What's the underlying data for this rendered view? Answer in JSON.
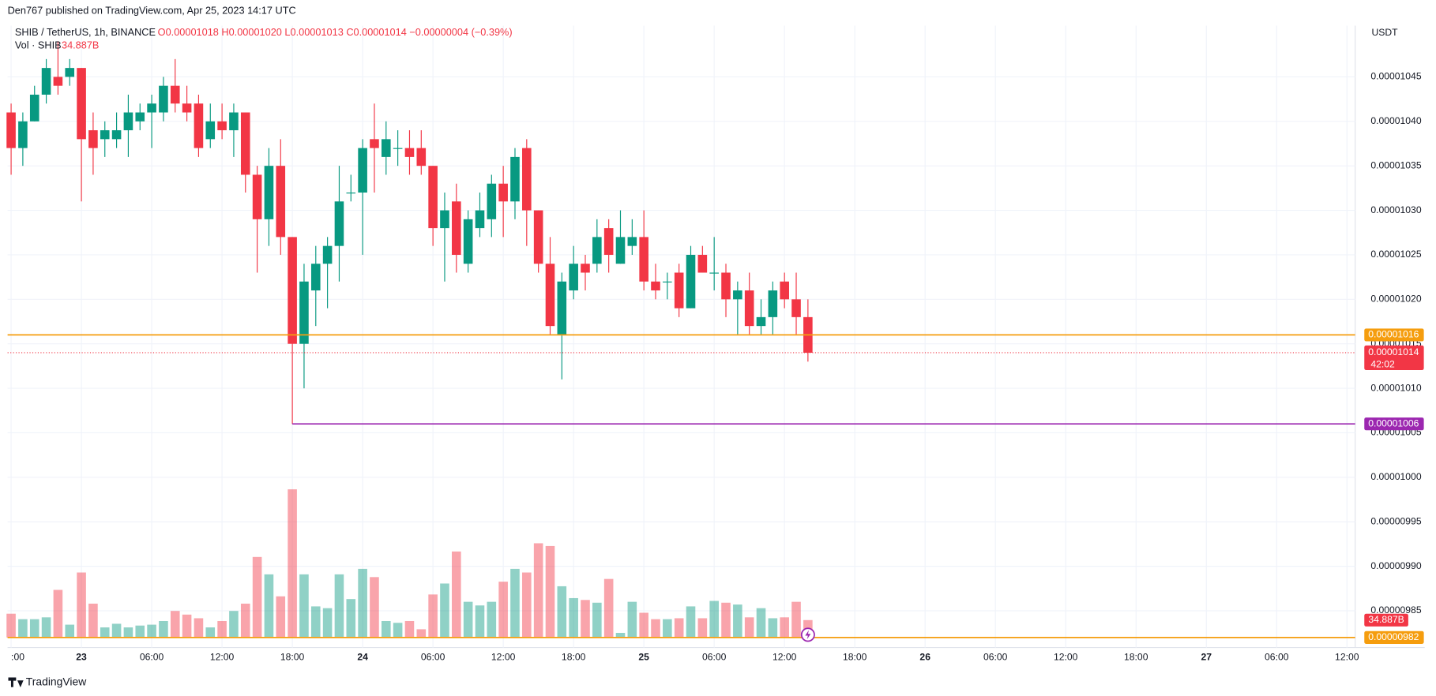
{
  "header": {
    "published": "Den767 published on TradingView.com, Apr 25, 2023 14:17 UTC",
    "symbol": "SHIB / TetherUS, 1h, BINANCE",
    "ohlc": "O0.00001018 H0.00001020 L0.00001013 C0.00001014 −0.00000004 (−0.39%)",
    "volume_name": "Vol · SHIB",
    "volume_value": "34.887B",
    "currency": "USDT",
    "footer": "TradingView"
  },
  "chart_data": {
    "type": "candlestick",
    "up_color": "#089981",
    "down_color": "#f23645",
    "grid": true,
    "open": [
      1.041e-05,
      1.037e-05,
      1.04e-05,
      1.043e-05,
      1.045e-05,
      1.045e-05,
      1.046e-05,
      1.039e-05,
      1.038e-05,
      1.038e-05,
      1.039e-05,
      1.04e-05,
      1.041e-05,
      1.041e-05,
      1.044e-05,
      1.042e-05,
      1.042e-05,
      1.038e-05,
      1.04e-05,
      1.039e-05,
      1.041e-05,
      1.034e-05,
      1.029e-05,
      1.035e-05,
      1.027e-05,
      1.015e-05,
      1.021e-05,
      1.024e-05,
      1.026e-05,
      1.032e-05,
      1.032e-05,
      1.038e-05,
      1.036e-05,
      1.037e-05,
      1.037e-05,
      1.037e-05,
      1.035e-05,
      1.028e-05,
      1.031e-05,
      1.024e-05,
      1.028e-05,
      1.029e-05,
      1.033e-05,
      1.031e-05,
      1.037e-05,
      1.03e-05,
      1.024e-05,
      1.016e-05,
      1.021e-05,
      1.024e-05,
      1.024e-05,
      1.028e-05,
      1.024e-05,
      1.026e-05,
      1.027e-05,
      1.022e-05,
      1.022e-05,
      1.023e-05,
      1.019e-05,
      1.025e-05,
      1.023e-05,
      1.023e-05,
      1.02e-05,
      1.021e-05,
      1.017e-05,
      1.018e-05,
      1.022e-05,
      1.02e-05,
      1.018e-05
    ],
    "high": [
      1.042e-05,
      1.041e-05,
      1.044e-05,
      1.047e-05,
      1.049e-05,
      1.047e-05,
      1.046e-05,
      1.041e-05,
      1.04e-05,
      1.041e-05,
      1.043e-05,
      1.042e-05,
      1.043e-05,
      1.045e-05,
      1.047e-05,
      1.044e-05,
      1.043e-05,
      1.042e-05,
      1.042e-05,
      1.042e-05,
      1.041e-05,
      1.035e-05,
      1.037e-05,
      1.038e-05,
      1.027e-05,
      1.024e-05,
      1.026e-05,
      1.027e-05,
      1.035e-05,
      1.034e-05,
      1.038e-05,
      1.042e-05,
      1.04e-05,
      1.039e-05,
      1.039e-05,
      1.039e-05,
      1.035e-05,
      1.032e-05,
      1.033e-05,
      1.03e-05,
      1.032e-05,
      1.034e-05,
      1.035e-05,
      1.037e-05,
      1.038e-05,
      1.03e-05,
      1.027e-05,
      1.023e-05,
      1.026e-05,
      1.025e-05,
      1.029e-05,
      1.029e-05,
      1.03e-05,
      1.029e-05,
      1.03e-05,
      1.024e-05,
      1.023e-05,
      1.024e-05,
      1.026e-05,
      1.026e-05,
      1.027e-05,
      1.024e-05,
      1.022e-05,
      1.023e-05,
      1.02e-05,
      1.022e-05,
      1.023e-05,
      1.023e-05,
      1.02e-05
    ],
    "low": [
      1.034e-05,
      1.035e-05,
      1.04e-05,
      1.042e-05,
      1.043e-05,
      1.044e-05,
      1.031e-05,
      1.034e-05,
      1.036e-05,
      1.037e-05,
      1.036e-05,
      1.039e-05,
      1.037e-05,
      1.04e-05,
      1.041e-05,
      1.04e-05,
      1.036e-05,
      1.037e-05,
      1.038e-05,
      1.036e-05,
      1.032e-05,
      1.023e-05,
      1.026e-05,
      1.025e-05,
      1.006e-05,
      1.01e-05,
      1.017e-05,
      1.019e-05,
      1.022e-05,
      1.031e-05,
      1.025e-05,
      1.032e-05,
      1.034e-05,
      1.035e-05,
      1.034e-05,
      1.034e-05,
      1.026e-05,
      1.022e-05,
      1.023e-05,
      1.023e-05,
      1.027e-05,
      1.027e-05,
      1.027e-05,
      1.029e-05,
      1.026e-05,
      1.023e-05,
      1.016e-05,
      1.011e-05,
      1.02e-05,
      1.021e-05,
      1.023e-05,
      1.023e-05,
      1.024e-05,
      1.025e-05,
      1.021e-05,
      1.02e-05,
      1.02e-05,
      1.018e-05,
      1.019e-05,
      1.023e-05,
      1.021e-05,
      1.018e-05,
      1.016e-05,
      1.016e-05,
      1.016e-05,
      1.016e-05,
      1.019e-05,
      1.016e-05,
      1.013e-05
    ],
    "close": [
      1.037e-05,
      1.04e-05,
      1.043e-05,
      1.046e-05,
      1.044e-05,
      1.046e-05,
      1.038e-05,
      1.037e-05,
      1.039e-05,
      1.039e-05,
      1.041e-05,
      1.041e-05,
      1.042e-05,
      1.044e-05,
      1.042e-05,
      1.041e-05,
      1.037e-05,
      1.04e-05,
      1.039e-05,
      1.041e-05,
      1.034e-05,
      1.029e-05,
      1.035e-05,
      1.027e-05,
      1.015e-05,
      1.022e-05,
      1.024e-05,
      1.026e-05,
      1.031e-05,
      1.032e-05,
      1.037e-05,
      1.037e-05,
      1.038e-05,
      1.037e-05,
      1.036e-05,
      1.035e-05,
      1.028e-05,
      1.03e-05,
      1.025e-05,
      1.029e-05,
      1.03e-05,
      1.033e-05,
      1.031e-05,
      1.036e-05,
      1.03e-05,
      1.024e-05,
      1.017e-05,
      1.022e-05,
      1.024e-05,
      1.023e-05,
      1.027e-05,
      1.025e-05,
      1.027e-05,
      1.027e-05,
      1.022e-05,
      1.021e-05,
      1.022e-05,
      1.019e-05,
      1.025e-05,
      1.023e-05,
      1.023e-05,
      1.02e-05,
      1.021e-05,
      1.017e-05,
      1.018e-05,
      1.021e-05,
      1.02e-05,
      1.018e-05,
      1.014e-05
    ],
    "volume": [
      47.7,
      36.7,
      36.7,
      40.4,
      95.5,
      25.7,
      130.4,
      67.9,
      20.2,
      27.5,
      20.2,
      23.9,
      25.7,
      33.0,
      53.2,
      45.9,
      38.6,
      20.2,
      33.0,
      53.2,
      67.9,
      161.6,
      126.7,
      82.6,
      297.4,
      126.7,
      62.4,
      58.8,
      126.7,
      77.1,
      137.7,
      121.2,
      33.0,
      29.4,
      33.0,
      16.5,
      86.3,
      108.3,
      172.6,
      71.6,
      64.3,
      71.6,
      112.0,
      137.7,
      130.4,
      189.1,
      183.6,
      102.8,
      79.0,
      75.3,
      69.8,
      117.5,
      9.2,
      71.6,
      49.6,
      36.7,
      36.7,
      38.6,
      62.4,
      38.6,
      73.4,
      69.8,
      66.1,
      40.4,
      58.8,
      38.6,
      40.4,
      71.6,
      34.887
    ],
    "volume_lim": [
      0,
      1228.3
    ],
    "xlim": [
      -0.3,
      114.7
    ],
    "xticks": [
      {
        "value": 0,
        "label": ":00"
      },
      {
        "value": 6,
        "label": "23"
      },
      {
        "value": 12,
        "label": "06:00"
      },
      {
        "value": 18,
        "label": "12:00"
      },
      {
        "value": 24,
        "label": "18:00"
      },
      {
        "value": 30,
        "label": "24"
      },
      {
        "value": 36,
        "label": "06:00"
      },
      {
        "value": 42,
        "label": "12:00"
      },
      {
        "value": 48,
        "label": "18:00"
      },
      {
        "value": 54,
        "label": "25"
      },
      {
        "value": 60,
        "label": "06:00"
      },
      {
        "value": 66,
        "label": "12:00"
      },
      {
        "value": 72,
        "label": "18:00"
      },
      {
        "value": 78,
        "label": "26"
      },
      {
        "value": 84,
        "label": "06:00"
      },
      {
        "value": 90,
        "label": "12:00"
      },
      {
        "value": 96,
        "label": "18:00"
      },
      {
        "value": 102,
        "label": "27"
      },
      {
        "value": 108,
        "label": "06:00"
      },
      {
        "value": 114,
        "label": "12:00"
      }
    ],
    "ylim": [
      9.8087e-06,
      1.05076e-05
    ],
    "yticks": [
      1.045e-05,
      {
        "value": 1.04e-05,
        "label": "0.00001040"
      },
      1.035e-05,
      {
        "value": 1.03e-05,
        "label": "0.00001030"
      },
      1.025e-05,
      {
        "value": 1.02e-05,
        "label": "0.00001020"
      },
      1.015e-05,
      {
        "value": 1.01e-05,
        "label": "0.00001010"
      },
      1.005e-05,
      {
        "value": 1e-05,
        "label": "0.00001000"
      },
      9.95e-06,
      {
        "value": 9.9e-06,
        "label": "0.00000990"
      },
      9.85e-06
    ],
    "lines": [
      {
        "value": 1.016e-05,
        "color": "#f59d0e",
        "start": -0.3
      },
      {
        "value": 1.006e-05,
        "color": "#9c27b0",
        "start": 24
      },
      {
        "value": 9.82e-06,
        "color": "#f59d0e",
        "start": -0.3
      }
    ],
    "last_price": {
      "value": 1.014e-05,
      "countdown": "42:02"
    }
  }
}
